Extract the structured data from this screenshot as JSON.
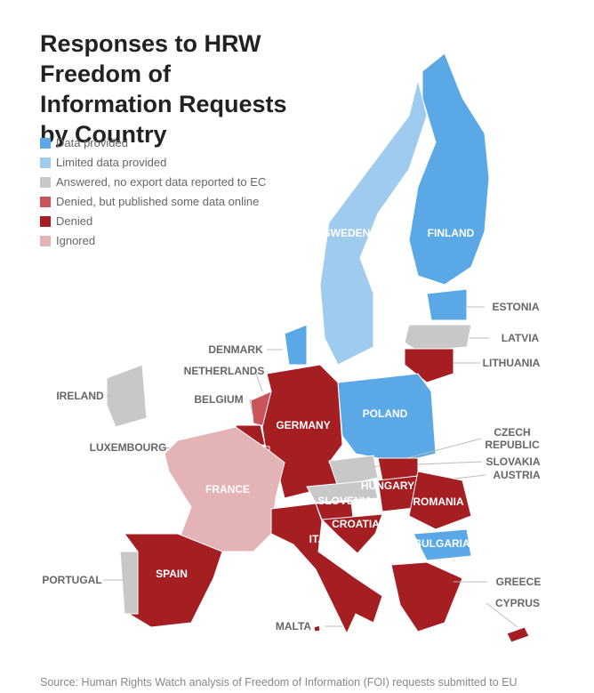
{
  "title": "Responses to HRW Freedom of Information Requests by Country",
  "legend": [
    {
      "label": "Data provided",
      "color": "#5aa9e6"
    },
    {
      "label": "Limited data provided",
      "color": "#9fcbee"
    },
    {
      "label": "Answered, no export data reported to EC",
      "color": "#c8c8c8"
    },
    {
      "label": "Denied, but published some data online",
      "color": "#c9555a"
    },
    {
      "label": "Denied",
      "color": "#a41e22"
    },
    {
      "label": "Ignored",
      "color": "#e3b3b5"
    }
  ],
  "countries": [
    {
      "name": "SWEDEN",
      "status": 1
    },
    {
      "name": "FINLAND",
      "status": 0
    },
    {
      "name": "ESTONIA",
      "status": 0
    },
    {
      "name": "LATVIA",
      "status": 2
    },
    {
      "name": "LITHUANIA",
      "status": 4
    },
    {
      "name": "DENMARK",
      "status": 0
    },
    {
      "name": "NETHERLANDS",
      "status": 3
    },
    {
      "name": "BELGIUM",
      "status": 4
    },
    {
      "name": "IRELAND",
      "status": 2
    },
    {
      "name": "GERMANY",
      "status": 4
    },
    {
      "name": "POLAND",
      "status": 0
    },
    {
      "name": "LUXEMBOURG",
      "status": 4
    },
    {
      "name": "CZECH REPUBLIC",
      "status": 2
    },
    {
      "name": "SLOVAKIA",
      "status": 4
    },
    {
      "name": "AUSTRIA",
      "status": 2
    },
    {
      "name": "HUNGARY",
      "status": 4
    },
    {
      "name": "FRANCE",
      "status": 5
    },
    {
      "name": "ROMANIA",
      "status": 4
    },
    {
      "name": "SLOVENIA",
      "status": 4
    },
    {
      "name": "CROATIA",
      "status": 4
    },
    {
      "name": "ITALY",
      "status": 4
    },
    {
      "name": "BULGARIA",
      "status": 0
    },
    {
      "name": "SPAIN",
      "status": 4
    },
    {
      "name": "PORTUGAL",
      "status": 2
    },
    {
      "name": "GREECE",
      "status": 4
    },
    {
      "name": "CYPRUS",
      "status": 4
    },
    {
      "name": "MALTA",
      "status": 4
    }
  ],
  "source": "Source: Human Rights Watch analysis of Freedom of Information (FOI) requests submitted to EU"
}
